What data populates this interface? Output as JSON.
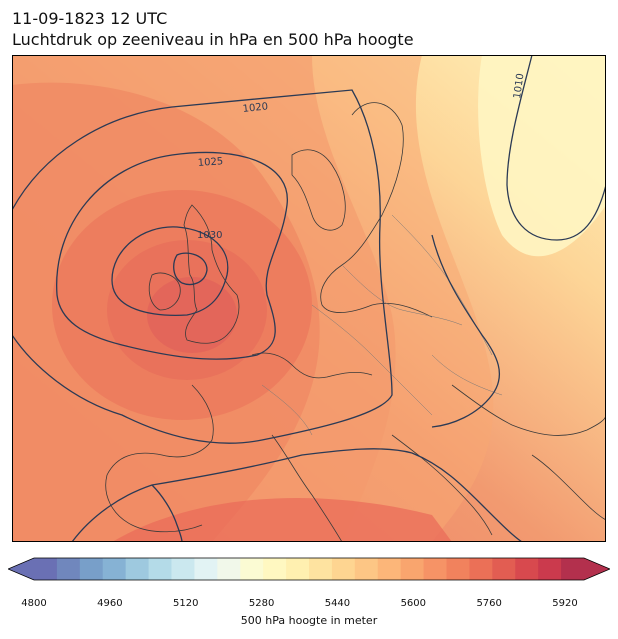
{
  "header": {
    "datetime": "11-09-1823 12 UTC",
    "subtitle": "Luchtdruk op zeeniveau in hPa en 500 hPa hoogte"
  },
  "map": {
    "region": "Europe",
    "isobar_labels": [
      "1020",
      "1025",
      "1030",
      "1010"
    ],
    "isobar_color": "#2b3a55",
    "coastline_color": "#3a3a3a",
    "border_color": "#777777"
  },
  "colorbar": {
    "label": "500 hPa hoogte in meter",
    "tick_labels": [
      "4800",
      "4960",
      "5120",
      "5280",
      "5440",
      "5600",
      "5760",
      "5920"
    ],
    "range": [
      4800,
      5960
    ],
    "extend": "both",
    "colors": [
      "#6a70b4",
      "#7087bd",
      "#789fc9",
      "#86b2d4",
      "#9ec9df",
      "#b4dbe8",
      "#cbe8ef",
      "#e2f3f4",
      "#f1f8ea",
      "#fbfbd3",
      "#fff8c1",
      "#fff0b0",
      "#fee3a0",
      "#fed591",
      "#fdc685",
      "#fcb679",
      "#f9a56e",
      "#f69366",
      "#f1825d",
      "#eb7057",
      "#e25d52",
      "#d8494e",
      "#cb3a4d",
      "#b3304d"
    ]
  }
}
